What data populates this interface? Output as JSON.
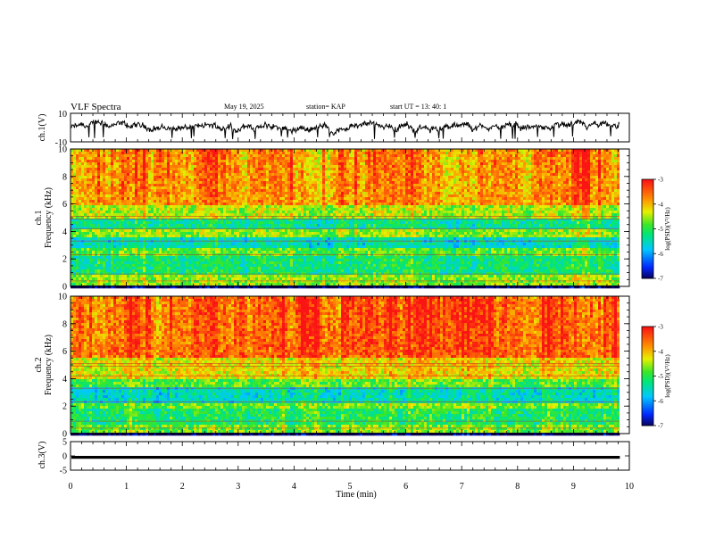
{
  "header": {
    "title": "VLF Spectra",
    "date": "May 19, 2025",
    "station": "station= KAP",
    "start": "start  UT  =   13: 40: 1"
  },
  "chart_data": [
    {
      "type": "line",
      "panel": "ch1-waveform",
      "ylabel": "ch.1(V)",
      "xlim": [
        0,
        10
      ],
      "ylim": [
        -10,
        10
      ],
      "yticks": [
        10,
        -10
      ],
      "series": [
        {
          "values_range": [
            -8,
            6
          ],
          "typical": 0
        }
      ]
    },
    {
      "type": "heatmap",
      "panel": "ch1-spectrogram",
      "ylabel": "ch.1\nFrequency  (kHz)",
      "ylabel_line1": "ch.1",
      "ylabel_line2": "Frequency  (kHz)",
      "xlim": [
        0,
        10
      ],
      "ylim": [
        0,
        10
      ],
      "yticks": [
        0,
        2,
        4,
        6,
        8,
        10
      ],
      "colorbar": {
        "range": [
          -7,
          -3
        ],
        "ticks": [
          -3,
          -4,
          -5,
          -6,
          -7
        ],
        "label": "log(PSD)(V²/Hz)"
      },
      "bands": [
        {
          "freq": [
            0,
            0.8
          ],
          "level": -4.6
        },
        {
          "freq": [
            0.8,
            2.2
          ],
          "level": -5.2
        },
        {
          "freq": [
            2.2,
            2.7
          ],
          "level": -4.8
        },
        {
          "freq": [
            2.7,
            3.6
          ],
          "level": -5.5
        },
        {
          "freq": [
            3.6,
            4.2
          ],
          "level": -4.6
        },
        {
          "freq": [
            4.2,
            5.0
          ],
          "level": -5.3
        },
        {
          "freq": [
            5.0,
            6.0
          ],
          "level": -4.5
        },
        {
          "freq": [
            6.0,
            10.0
          ],
          "level": -3.8
        }
      ]
    },
    {
      "type": "heatmap",
      "panel": "ch2-spectrogram",
      "ylabel_line1": "ch.2",
      "ylabel_line2": "Frequency  (kHz)",
      "xlim": [
        0,
        10
      ],
      "ylim": [
        0,
        10
      ],
      "yticks": [
        0,
        2,
        4,
        6,
        8,
        10
      ],
      "colorbar": {
        "range": [
          -7,
          -3
        ],
        "ticks": [
          -3,
          -4,
          -5,
          -6,
          -7
        ],
        "label": "log(PSD)(V²/Hz)"
      },
      "bands": [
        {
          "freq": [
            0,
            0.6
          ],
          "level": -4.7
        },
        {
          "freq": [
            0.6,
            1.8
          ],
          "level": -5.1
        },
        {
          "freq": [
            1.8,
            2.3
          ],
          "level": -4.7
        },
        {
          "freq": [
            2.3,
            3.4
          ],
          "level": -5.5
        },
        {
          "freq": [
            3.4,
            4.0
          ],
          "level": -4.8
        },
        {
          "freq": [
            4.0,
            5.5
          ],
          "level": -4.2
        },
        {
          "freq": [
            5.5,
            10.0
          ],
          "level": -3.5
        }
      ]
    },
    {
      "type": "line",
      "panel": "ch3-waveform",
      "ylabel": "ch.3(V)",
      "xlim": [
        0,
        10
      ],
      "ylim": [
        -5,
        5
      ],
      "yticks": [
        5,
        0,
        -5
      ],
      "series": [
        {
          "values_range": [
            -1,
            0
          ],
          "typical": -0.5
        }
      ]
    }
  ],
  "xaxis": {
    "label": "Time  (min)",
    "ticks": [
      "0",
      "1",
      "2",
      "3",
      "4",
      "5",
      "6",
      "7",
      "8",
      "9",
      "10"
    ],
    "data_end": 9.83
  }
}
